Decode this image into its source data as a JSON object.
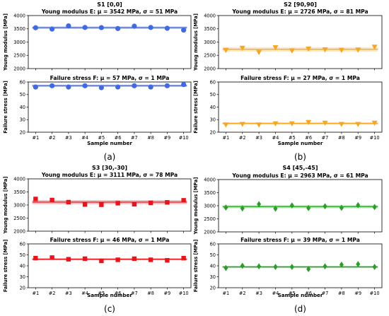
{
  "chart_data": [
    {
      "type": "scatter",
      "panel_label": "(a)",
      "heading": "S1 [0,0]",
      "color": "#4169e1",
      "marker": "circle",
      "x_tick_labels": [
        "#1",
        "#2",
        "#3",
        "#4",
        "#5",
        "#6",
        "#7",
        "#8",
        "#9",
        "#10"
      ],
      "xlabel": "Sample number",
      "subplots": [
        {
          "title": "Young modulus E:  μ = 3542 MPa, σ = 51 MPa",
          "ylabel": "Young modulus [MPa]",
          "ylim": [
            2000,
            4000
          ],
          "yticks": [
            2000,
            2500,
            3000,
            3500,
            4000
          ],
          "mean": 3542,
          "std": 51,
          "values": [
            3540,
            3490,
            3610,
            3550,
            3545,
            3510,
            3600,
            3550,
            3520,
            3450
          ]
        },
        {
          "title": "Failure stress F:  μ = 57 MPa, σ = 1 MPa",
          "ylabel": "Failure stress [MPa]",
          "ylim": [
            20,
            60
          ],
          "yticks": [
            20,
            30,
            40,
            50,
            60
          ],
          "mean": 57,
          "std": 1,
          "values": [
            56,
            57,
            56,
            57,
            55.5,
            56,
            57,
            56,
            57,
            58
          ]
        }
      ]
    },
    {
      "type": "scatter",
      "panel_label": "(b)",
      "heading": "S2 [90,90]",
      "color": "#f5a623",
      "marker": "triangle-down",
      "x_tick_labels": [
        "#1",
        "#2",
        "#3",
        "#4",
        "#5",
        "#6",
        "#7",
        "#8",
        "#9",
        "#10"
      ],
      "xlabel": "Sample number",
      "subplots": [
        {
          "title": "Young modulus E:  μ = 2726 MPa, σ = 81 MPa",
          "ylabel": "Young modulus [MPa]",
          "ylim": [
            2000,
            4000
          ],
          "yticks": [
            2000,
            2500,
            3000,
            3500,
            4000
          ],
          "mean": 2726,
          "std": 81,
          "values": [
            2700,
            2780,
            2620,
            2800,
            2680,
            2750,
            2720,
            2700,
            2710,
            2820
          ]
        },
        {
          "title": "Failure stress F:  μ = 27 MPa, σ = 1 MPa",
          "ylabel": "Failure stress [MPa]",
          "ylim": [
            20,
            60
          ],
          "yticks": [
            20,
            30,
            40,
            50,
            60
          ],
          "mean": 27,
          "std": 1,
          "values": [
            26,
            26.5,
            26,
            27,
            27,
            28,
            27.5,
            26.5,
            26.5,
            27.5
          ]
        }
      ]
    },
    {
      "type": "scatter",
      "panel_label": "(c)",
      "heading": "S3 [30,-30]",
      "color": "#e8141c",
      "marker": "square",
      "x_tick_labels": [
        "#1",
        "#2",
        "#3",
        "#4",
        "#5",
        "#6",
        "#7",
        "#8",
        "#9",
        "#10"
      ],
      "xlabel": "Sample number",
      "subplots": [
        {
          "title": "Young modulus E:  μ = 3111 MPa, σ = 78 MPa",
          "ylabel": "Young modulus [MPa]",
          "ylim": [
            2000,
            4000
          ],
          "yticks": [
            2000,
            2500,
            3000,
            3500,
            4000
          ],
          "mean": 3111,
          "std": 78,
          "values": [
            3230,
            3190,
            3110,
            3020,
            3010,
            3070,
            3030,
            3080,
            3100,
            3180
          ]
        },
        {
          "title": "Failure stress F:  μ = 46 MPa, σ = 1 MPa",
          "ylabel": "Failure stress [MPa]",
          "ylim": [
            20,
            60
          ],
          "yticks": [
            20,
            30,
            40,
            50,
            60
          ],
          "mean": 46,
          "std": 1,
          "values": [
            47,
            47.5,
            46,
            46.5,
            44.5,
            45.5,
            46.5,
            45.5,
            45,
            47
          ]
        }
      ]
    },
    {
      "type": "scatter",
      "panel_label": "(d)",
      "heading": "S4 [45,-45]",
      "color": "#2a9d2a",
      "marker": "diamond",
      "x_tick_labels": [
        "#1",
        "#2",
        "#3",
        "#4",
        "#5",
        "#6",
        "#7",
        "#8",
        "#9",
        "#10"
      ],
      "xlabel": "Sample number",
      "subplots": [
        {
          "title": "Young modulus E:  μ = 2963 MPa, σ = 61 MPa",
          "ylabel": "Young modulus [MPa]",
          "ylim": [
            2000,
            4000
          ],
          "yticks": [
            2000,
            2500,
            3000,
            3500,
            4000
          ],
          "mean": 2963,
          "std": 61,
          "values": [
            2930,
            2900,
            3060,
            2890,
            3010,
            2910,
            2980,
            2920,
            3020,
            2950
          ]
        },
        {
          "title": "Failure stress F:  μ = 39 MPa, σ = 1 MPa",
          "ylabel": "Failure stress [MPa]",
          "ylim": [
            20,
            60
          ],
          "yticks": [
            20,
            30,
            40,
            50,
            60
          ],
          "mean": 39,
          "std": 1,
          "values": [
            38,
            40,
            39.5,
            39,
            39,
            37,
            39.5,
            41,
            41.5,
            39
          ]
        }
      ]
    }
  ]
}
